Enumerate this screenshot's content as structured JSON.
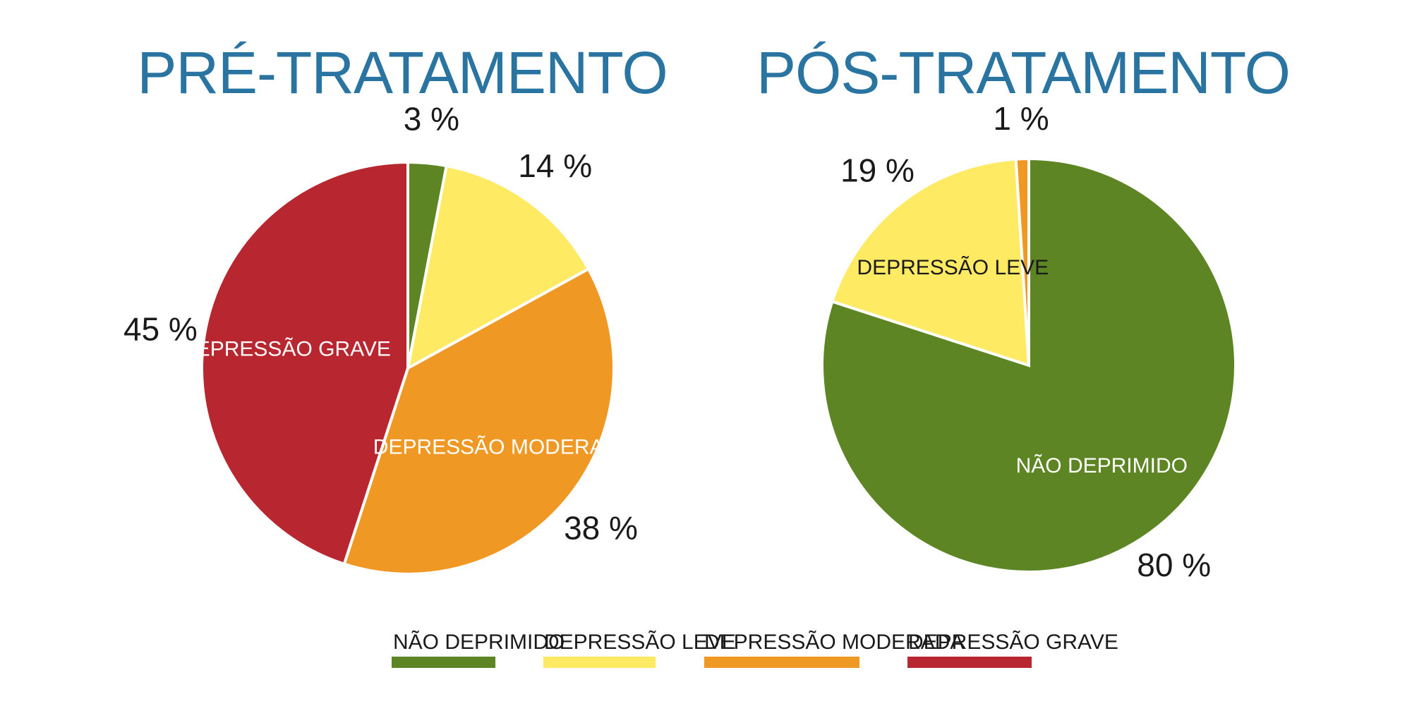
{
  "colors": {
    "nao_deprimido": "#5d8524",
    "depressao_leve": "#feea63",
    "depressao_moderada": "#ef9823",
    "depressao_grave": "#b8262f",
    "title": "#2a74a2"
  },
  "legend": [
    {
      "label": "NÃO DEPRIMIDO",
      "color": "#5d8524"
    },
    {
      "label": "DEPRESSÃO LEVE",
      "color": "#feea63"
    },
    {
      "label": "DEPRESSÃO MODERADA",
      "color": "#ef9823"
    },
    {
      "label": "DEPRESSÃO GRAVE",
      "color": "#b8262f"
    }
  ],
  "chart_data": [
    {
      "type": "pie",
      "title": "PRÉ-TRATAMENTO",
      "slices": [
        {
          "category": "NÃO DEPRIMIDO",
          "value": 3,
          "label": "3 %",
          "color": "#5d8524",
          "inner_label": ""
        },
        {
          "category": "DEPRESSÃO LEVE",
          "value": 14,
          "label": "14 %",
          "color": "#feea63",
          "inner_label": ""
        },
        {
          "category": "DEPRESSÃO MODERADA",
          "value": 38,
          "label": "38 %",
          "color": "#ef9823",
          "inner_label": "DEPRESSÃO MODERADA"
        },
        {
          "category": "DEPRESSÃO GRAVE",
          "value": 45,
          "label": "45 %",
          "color": "#b8262f",
          "inner_label": "DEPRESSÃO GRAVE"
        }
      ]
    },
    {
      "type": "pie",
      "title": "PÓS-TRATAMENTO",
      "slices": [
        {
          "category": "NÃO DEPRIMIDO",
          "value": 80,
          "label": "80 %",
          "color": "#5d8524",
          "inner_label": "NÃO DEPRIMIDO"
        },
        {
          "category": "DEPRESSÃO LEVE",
          "value": 19,
          "label": "19 %",
          "color": "#feea63",
          "inner_label": "DEPRESSÃO LEVE"
        },
        {
          "category": "DEPRESSÃO MODERADA",
          "value": 1,
          "label": "1 %",
          "color": "#ef9823",
          "inner_label": ""
        }
      ]
    }
  ]
}
